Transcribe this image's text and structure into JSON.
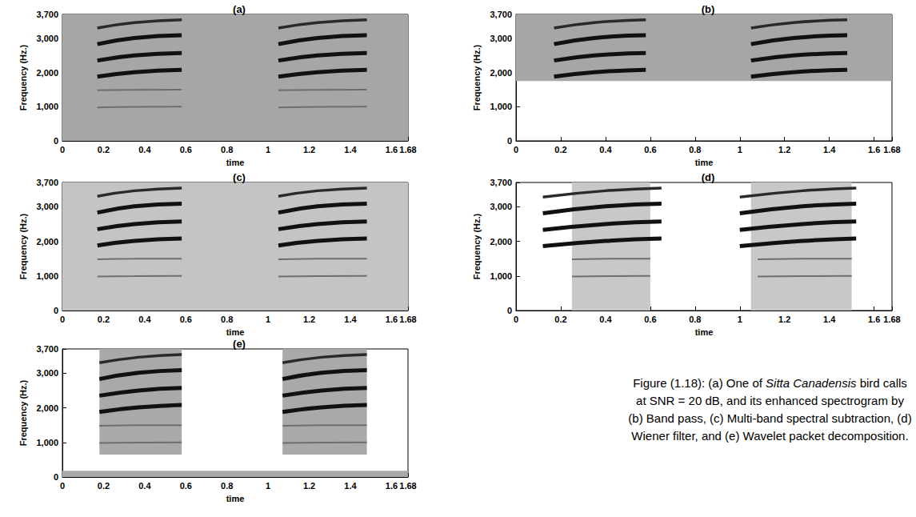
{
  "chart_data": [
    {
      "type": "spectrogram",
      "title": "(a)",
      "x_label": "time",
      "y_label": "Frequency (Hz.)",
      "xlim": [
        0,
        1.68
      ],
      "xticks": [
        0,
        0.2,
        0.4,
        0.6,
        0.8,
        1,
        1.2,
        1.4,
        1.6
      ],
      "ylim": [
        0,
        3700
      ],
      "yticks": [
        0,
        1000,
        2000,
        3000
      ],
      "color": "#a6a6a6",
      "noise_regions": [
        [
          0,
          1.68,
          0,
          3700
        ]
      ],
      "tracks": [
        {
          "x": [
            0.17,
            0.35,
            0.58
          ],
          "y": [
            980,
            995,
            1000
          ],
          "color": "#6e6e6e",
          "line_style": "thin"
        },
        {
          "x": [
            0.17,
            0.35,
            0.58
          ],
          "y": [
            1480,
            1495,
            1500
          ],
          "color": "#6e6e6e",
          "line_style": "thin"
        },
        {
          "x": [
            0.17,
            0.35,
            0.58
          ],
          "y": [
            1880,
            2010,
            2080
          ],
          "color": "#111111",
          "line_style": "thick"
        },
        {
          "x": [
            0.17,
            0.35,
            0.58
          ],
          "y": [
            2350,
            2500,
            2570
          ],
          "color": "#111111",
          "line_style": "thick"
        },
        {
          "x": [
            0.17,
            0.35,
            0.58
          ],
          "y": [
            2830,
            3010,
            3090
          ],
          "color": "#111111",
          "line_style": "thick"
        },
        {
          "x": [
            0.17,
            0.35,
            0.58
          ],
          "y": [
            3300,
            3460,
            3540
          ],
          "color": "#2a2a2a",
          "line_style": "medium"
        },
        {
          "x": [
            1.05,
            1.24,
            1.48
          ],
          "y": [
            980,
            995,
            1000
          ],
          "color": "#6e6e6e",
          "line_style": "thin"
        },
        {
          "x": [
            1.05,
            1.24,
            1.48
          ],
          "y": [
            1480,
            1495,
            1500
          ],
          "color": "#6e6e6e",
          "line_style": "thin"
        },
        {
          "x": [
            1.05,
            1.24,
            1.48
          ],
          "y": [
            1880,
            2010,
            2080
          ],
          "color": "#111111",
          "line_style": "thick"
        },
        {
          "x": [
            1.05,
            1.24,
            1.48
          ],
          "y": [
            2350,
            2500,
            2570
          ],
          "color": "#111111",
          "line_style": "thick"
        },
        {
          "x": [
            1.05,
            1.24,
            1.48
          ],
          "y": [
            2830,
            3010,
            3090
          ],
          "color": "#111111",
          "line_style": "thick"
        },
        {
          "x": [
            1.05,
            1.24,
            1.48
          ],
          "y": [
            3300,
            3460,
            3540
          ],
          "color": "#2a2a2a",
          "line_style": "medium"
        }
      ]
    },
    {
      "type": "spectrogram",
      "title": "(b)",
      "x_label": "time",
      "y_label": "Frequency (Hz.)",
      "xlim": [
        0,
        1.68
      ],
      "xticks": [
        0,
        0.2,
        0.4,
        0.6,
        0.8,
        1,
        1.2,
        1.4,
        1.6
      ],
      "ylim": [
        0,
        3700
      ],
      "yticks": [
        0,
        1000,
        2000,
        3000
      ],
      "color": "#a6a6a6",
      "noise_regions": [
        [
          0,
          1.68,
          1750,
          3700
        ]
      ],
      "tracks": [
        {
          "x": [
            0.17,
            0.35,
            0.58
          ],
          "y": [
            1880,
            2010,
            2080
          ],
          "color": "#111111",
          "line_style": "thick"
        },
        {
          "x": [
            0.17,
            0.35,
            0.58
          ],
          "y": [
            2350,
            2500,
            2570
          ],
          "color": "#111111",
          "line_style": "thick"
        },
        {
          "x": [
            0.17,
            0.35,
            0.58
          ],
          "y": [
            2830,
            3010,
            3090
          ],
          "color": "#111111",
          "line_style": "thick"
        },
        {
          "x": [
            0.17,
            0.35,
            0.58
          ],
          "y": [
            3300,
            3460,
            3540
          ],
          "color": "#2a2a2a",
          "line_style": "medium"
        },
        {
          "x": [
            1.05,
            1.24,
            1.48
          ],
          "y": [
            1880,
            2010,
            2080
          ],
          "color": "#111111",
          "line_style": "thick"
        },
        {
          "x": [
            1.05,
            1.24,
            1.48
          ],
          "y": [
            2350,
            2500,
            2570
          ],
          "color": "#111111",
          "line_style": "thick"
        },
        {
          "x": [
            1.05,
            1.24,
            1.48
          ],
          "y": [
            2830,
            3010,
            3090
          ],
          "color": "#111111",
          "line_style": "thick"
        },
        {
          "x": [
            1.05,
            1.24,
            1.48
          ],
          "y": [
            3300,
            3460,
            3540
          ],
          "color": "#2a2a2a",
          "line_style": "medium"
        }
      ]
    },
    {
      "type": "spectrogram",
      "title": "(c)",
      "x_label": "time",
      "y_label": "Frequency (Hz.)",
      "xlim": [
        0,
        1.68
      ],
      "xticks": [
        0,
        0.2,
        0.4,
        0.6,
        0.8,
        1,
        1.2,
        1.4,
        1.6
      ],
      "ylim": [
        0,
        3700
      ],
      "yticks": [
        0,
        1000,
        2000,
        3000
      ],
      "color": "#c4c4c4",
      "noise_regions": [
        [
          0,
          1.68,
          0,
          3700
        ]
      ],
      "tracks": [
        {
          "x": [
            0.17,
            0.35,
            0.58
          ],
          "y": [
            980,
            995,
            1000
          ],
          "color": "#6e6e6e",
          "line_style": "thin"
        },
        {
          "x": [
            0.17,
            0.35,
            0.58
          ],
          "y": [
            1480,
            1495,
            1500
          ],
          "color": "#6e6e6e",
          "line_style": "thin"
        },
        {
          "x": [
            0.17,
            0.35,
            0.58
          ],
          "y": [
            1880,
            2010,
            2080
          ],
          "color": "#111111",
          "line_style": "thick"
        },
        {
          "x": [
            0.17,
            0.35,
            0.58
          ],
          "y": [
            2350,
            2500,
            2570
          ],
          "color": "#111111",
          "line_style": "thick"
        },
        {
          "x": [
            0.17,
            0.35,
            0.58
          ],
          "y": [
            2830,
            3010,
            3090
          ],
          "color": "#111111",
          "line_style": "thick"
        },
        {
          "x": [
            0.17,
            0.35,
            0.58
          ],
          "y": [
            3300,
            3460,
            3540
          ],
          "color": "#2a2a2a",
          "line_style": "medium"
        },
        {
          "x": [
            1.05,
            1.24,
            1.48
          ],
          "y": [
            980,
            995,
            1000
          ],
          "color": "#6e6e6e",
          "line_style": "thin"
        },
        {
          "x": [
            1.05,
            1.24,
            1.48
          ],
          "y": [
            1480,
            1495,
            1500
          ],
          "color": "#6e6e6e",
          "line_style": "thin"
        },
        {
          "x": [
            1.05,
            1.24,
            1.48
          ],
          "y": [
            1880,
            2010,
            2080
          ],
          "color": "#111111",
          "line_style": "thick"
        },
        {
          "x": [
            1.05,
            1.24,
            1.48
          ],
          "y": [
            2350,
            2500,
            2570
          ],
          "color": "#111111",
          "line_style": "thick"
        },
        {
          "x": [
            1.05,
            1.24,
            1.48
          ],
          "y": [
            2830,
            3010,
            3090
          ],
          "color": "#111111",
          "line_style": "thick"
        },
        {
          "x": [
            1.05,
            1.24,
            1.48
          ],
          "y": [
            3300,
            3460,
            3540
          ],
          "color": "#2a2a2a",
          "line_style": "medium"
        }
      ]
    },
    {
      "type": "spectrogram",
      "title": "(d)",
      "x_label": "time",
      "y_label": "Frequency (Hz.)",
      "xlim": [
        0,
        1.68
      ],
      "xticks": [
        0,
        0.2,
        0.4,
        0.6,
        0.8,
        1,
        1.2,
        1.4,
        1.6
      ],
      "ylim": [
        0,
        3700
      ],
      "yticks": [
        0,
        1000,
        2000,
        3000
      ],
      "color": "#c8c8c8",
      "noise_regions": [
        [
          0.25,
          0.6,
          0,
          3700
        ],
        [
          1.05,
          1.5,
          0,
          3700
        ]
      ],
      "tracks": [
        {
          "x": [
            0.25,
            0.42,
            0.6
          ],
          "y": [
            980,
            995,
            1000
          ],
          "color": "#6e6e6e",
          "line_style": "thin"
        },
        {
          "x": [
            0.25,
            0.42,
            0.6
          ],
          "y": [
            1480,
            1495,
            1500
          ],
          "color": "#6e6e6e",
          "line_style": "thin"
        },
        {
          "x": [
            0.12,
            0.4,
            0.65
          ],
          "y": [
            1860,
            2010,
            2080
          ],
          "color": "#111111",
          "line_style": "thick"
        },
        {
          "x": [
            0.12,
            0.4,
            0.65
          ],
          "y": [
            2330,
            2500,
            2570
          ],
          "color": "#111111",
          "line_style": "thick"
        },
        {
          "x": [
            0.12,
            0.4,
            0.65
          ],
          "y": [
            2810,
            3010,
            3090
          ],
          "color": "#111111",
          "line_style": "thick"
        },
        {
          "x": [
            0.12,
            0.4,
            0.65
          ],
          "y": [
            3280,
            3460,
            3540
          ],
          "color": "#2a2a2a",
          "line_style": "medium"
        },
        {
          "x": [
            1.08,
            1.28,
            1.5
          ],
          "y": [
            980,
            995,
            1000
          ],
          "color": "#6e6e6e",
          "line_style": "thin"
        },
        {
          "x": [
            1.08,
            1.28,
            1.5
          ],
          "y": [
            1480,
            1495,
            1500
          ],
          "color": "#6e6e6e",
          "line_style": "thin"
        },
        {
          "x": [
            1.0,
            1.28,
            1.52
          ],
          "y": [
            1860,
            2010,
            2080
          ],
          "color": "#111111",
          "line_style": "thick"
        },
        {
          "x": [
            1.0,
            1.28,
            1.52
          ],
          "y": [
            2330,
            2500,
            2570
          ],
          "color": "#111111",
          "line_style": "thick"
        },
        {
          "x": [
            1.0,
            1.28,
            1.52
          ],
          "y": [
            2810,
            3010,
            3090
          ],
          "color": "#111111",
          "line_style": "thick"
        },
        {
          "x": [
            1.0,
            1.28,
            1.52
          ],
          "y": [
            3280,
            3460,
            3540
          ],
          "color": "#2a2a2a",
          "line_style": "medium"
        }
      ]
    },
    {
      "type": "spectrogram",
      "title": "(e)",
      "x_label": "time",
      "y_label": "Frequency (Hz.)",
      "xlim": [
        0,
        1.68
      ],
      "xticks": [
        0,
        0.2,
        0.4,
        0.6,
        0.8,
        1,
        1.2,
        1.4,
        1.6
      ],
      "ylim": [
        0,
        3700
      ],
      "yticks": [
        0,
        1000,
        2000,
        3000
      ],
      "color": "#a9a9a9",
      "noise_regions": [
        [
          0.18,
          0.58,
          650,
          3700
        ],
        [
          1.07,
          1.48,
          650,
          3700
        ],
        [
          0,
          1.68,
          0,
          180
        ]
      ],
      "tracks": [
        {
          "x": [
            0.18,
            0.37,
            0.58
          ],
          "y": [
            980,
            995,
            1000
          ],
          "color": "#6e6e6e",
          "line_style": "thin"
        },
        {
          "x": [
            0.18,
            0.37,
            0.58
          ],
          "y": [
            1480,
            1495,
            1500
          ],
          "color": "#6e6e6e",
          "line_style": "thin"
        },
        {
          "x": [
            0.18,
            0.37,
            0.58
          ],
          "y": [
            1880,
            2010,
            2080
          ],
          "color": "#111111",
          "line_style": "thick"
        },
        {
          "x": [
            0.18,
            0.37,
            0.58
          ],
          "y": [
            2350,
            2500,
            2570
          ],
          "color": "#111111",
          "line_style": "thick"
        },
        {
          "x": [
            0.18,
            0.37,
            0.58
          ],
          "y": [
            2830,
            3010,
            3090
          ],
          "color": "#111111",
          "line_style": "thick"
        },
        {
          "x": [
            0.18,
            0.37,
            0.58
          ],
          "y": [
            3300,
            3460,
            3540
          ],
          "color": "#2a2a2a",
          "line_style": "medium"
        },
        {
          "x": [
            1.07,
            1.26,
            1.48
          ],
          "y": [
            980,
            995,
            1000
          ],
          "color": "#6e6e6e",
          "line_style": "thin"
        },
        {
          "x": [
            1.07,
            1.26,
            1.48
          ],
          "y": [
            1480,
            1495,
            1500
          ],
          "color": "#6e6e6e",
          "line_style": "thin"
        },
        {
          "x": [
            1.07,
            1.26,
            1.48
          ],
          "y": [
            1880,
            2010,
            2080
          ],
          "color": "#111111",
          "line_style": "thick"
        },
        {
          "x": [
            1.07,
            1.26,
            1.48
          ],
          "y": [
            2350,
            2500,
            2570
          ],
          "color": "#111111",
          "line_style": "thick"
        },
        {
          "x": [
            1.07,
            1.26,
            1.48
          ],
          "y": [
            2830,
            3010,
            3090
          ],
          "color": "#111111",
          "line_style": "thick"
        },
        {
          "x": [
            1.07,
            1.26,
            1.48
          ],
          "y": [
            3300,
            3460,
            3540
          ],
          "color": "#2a2a2a",
          "line_style": "medium"
        }
      ]
    }
  ],
  "caption": "Figure (1.18): (a) One of Sitta Canadensis bird calls at SNR = 20 dB, and its enhanced spectrogram by (b) Band pass, (c) Multi-band spectral subtraction, (d) Wiener filter, and (e) Wavelet packet decomposition.",
  "caption_italic": "Sitta Canadensis"
}
